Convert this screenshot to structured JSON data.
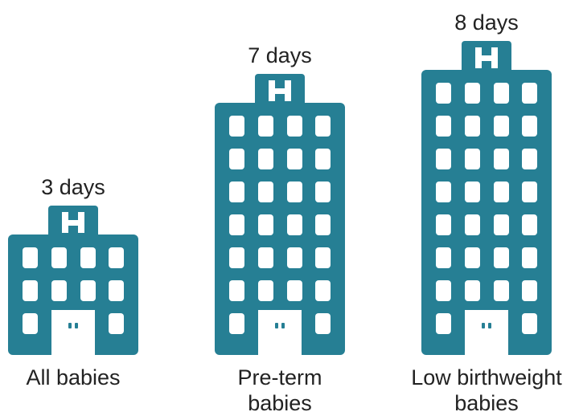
{
  "chart_data": {
    "type": "pictograph",
    "categories": [
      "All babies",
      "Pre-term babies",
      "Low birthweight babies"
    ],
    "values": [
      3,
      7,
      8
    ],
    "value_labels": [
      "3 days",
      "7 days",
      "8 days"
    ],
    "color": "#267f94"
  }
}
